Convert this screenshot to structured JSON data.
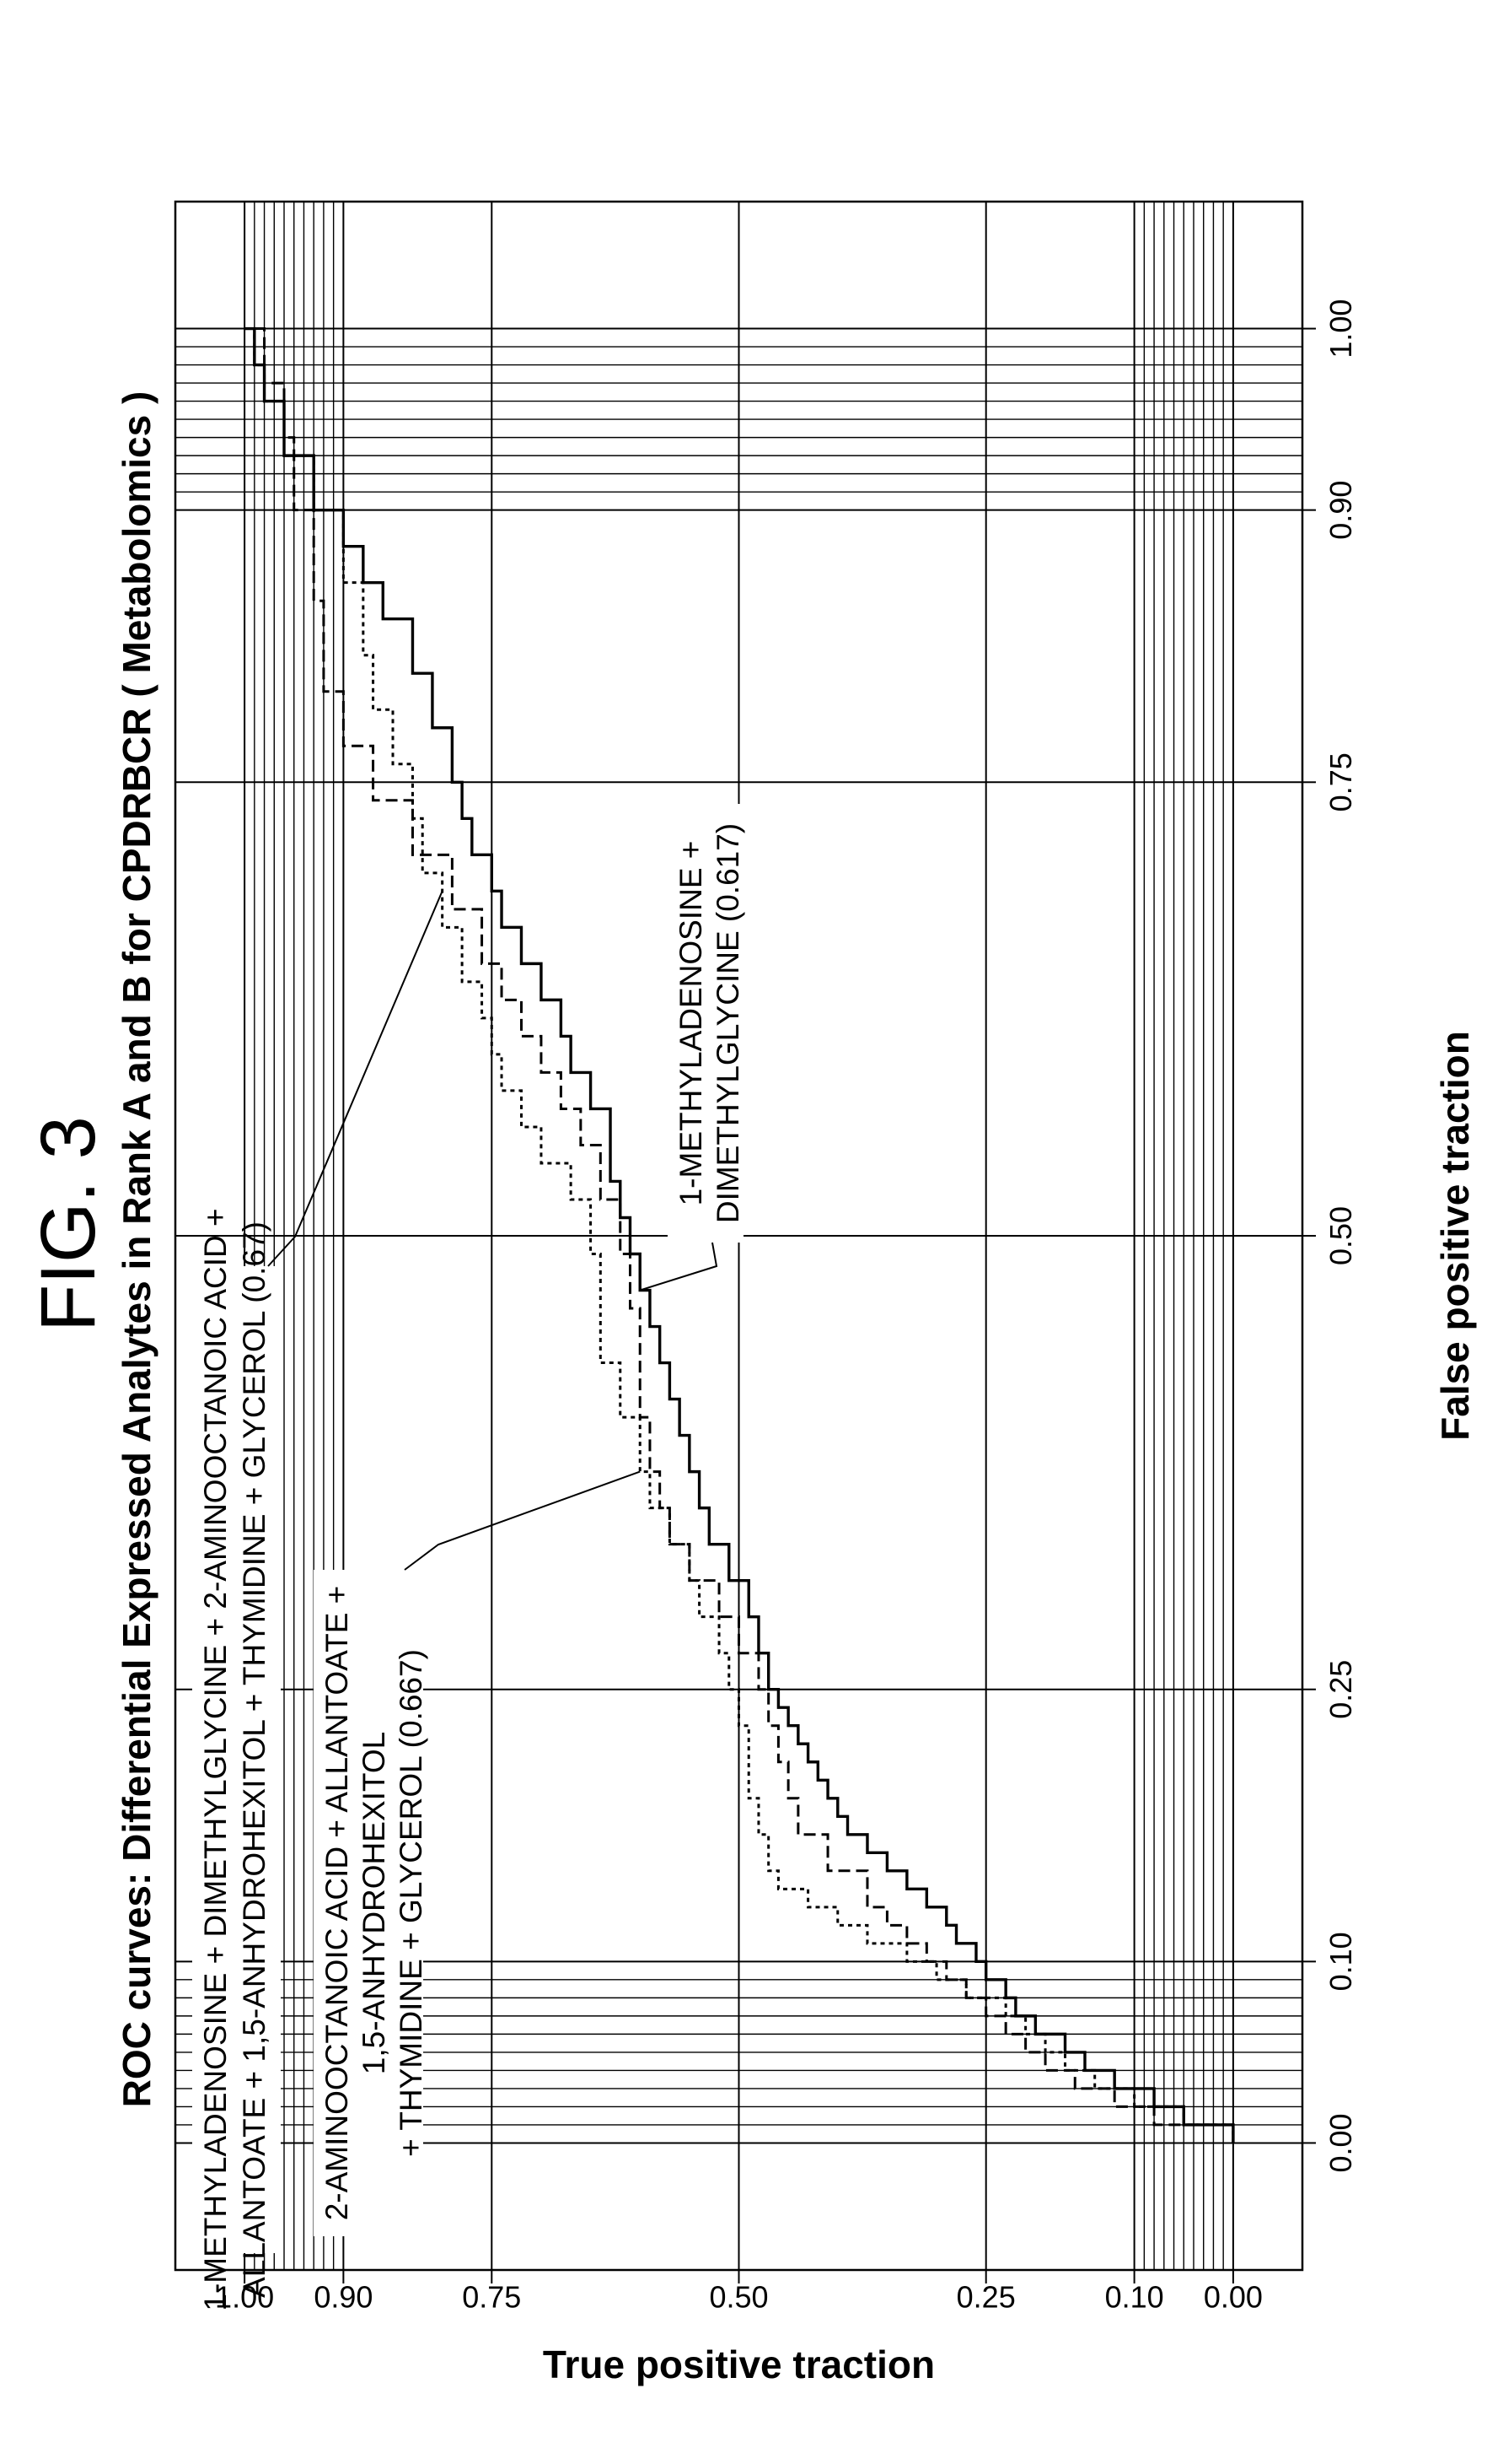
{
  "figure_label": "FIG. 3",
  "chart_data": {
    "type": "line",
    "title": "ROC curves: Differential Expressed Analytes in Rank A and B for CPDRBCR ( Metabolomics )",
    "xlabel": "False positive traction",
    "ylabel": "True positive traction",
    "xlim": [
      -0.07,
      1.07
    ],
    "ylim": [
      -0.07,
      1.07
    ],
    "x_ticks": [
      "0.00",
      "0.10",
      "0.25",
      "0.50",
      "0.75",
      "0.90",
      "1.00"
    ],
    "y_ticks": [
      "0.00",
      "0.10",
      "0.25",
      "0.50",
      "0.75",
      "0.90",
      "1.00"
    ],
    "x_tick_values": [
      0.0,
      0.1,
      0.25,
      0.5,
      0.75,
      0.9,
      1.0
    ],
    "y_tick_values": [
      0.0,
      0.1,
      0.25,
      0.5,
      0.75,
      0.9,
      1.0
    ],
    "grid": true,
    "fine_grid_bands": [
      [
        0.0,
        0.1
      ],
      [
        0.9,
        1.0
      ]
    ],
    "series": [
      {
        "name": "1-METHYLADENOSINE + DIMETHYLGLYCINE (0.617)",
        "style": "solid",
        "x": [
          0.0,
          0.01,
          0.01,
          0.02,
          0.03,
          0.04,
          0.05,
          0.06,
          0.07,
          0.08,
          0.09,
          0.1,
          0.11,
          0.12,
          0.13,
          0.14,
          0.15,
          0.16,
          0.17,
          0.18,
          0.19,
          0.2,
          0.21,
          0.22,
          0.23,
          0.24,
          0.25,
          0.27,
          0.29,
          0.31,
          0.33,
          0.35,
          0.37,
          0.39,
          0.41,
          0.43,
          0.45,
          0.47,
          0.49,
          0.51,
          0.53,
          0.55,
          0.57,
          0.59,
          0.61,
          0.63,
          0.65,
          0.67,
          0.69,
          0.71,
          0.73,
          0.75,
          0.78,
          0.81,
          0.84,
          0.86,
          0.88,
          0.9,
          0.93,
          0.96,
          0.98,
          1.0
        ],
        "y": [
          0.0,
          0.0,
          0.05,
          0.08,
          0.12,
          0.15,
          0.17,
          0.2,
          0.22,
          0.23,
          0.25,
          0.26,
          0.28,
          0.29,
          0.31,
          0.33,
          0.35,
          0.37,
          0.39,
          0.4,
          0.41,
          0.42,
          0.43,
          0.44,
          0.45,
          0.46,
          0.47,
          0.48,
          0.49,
          0.51,
          0.53,
          0.54,
          0.55,
          0.56,
          0.57,
          0.58,
          0.59,
          0.6,
          0.61,
          0.62,
          0.63,
          0.63,
          0.65,
          0.67,
          0.68,
          0.7,
          0.72,
          0.74,
          0.75,
          0.77,
          0.78,
          0.79,
          0.81,
          0.83,
          0.86,
          0.88,
          0.9,
          0.93,
          0.96,
          0.98,
          0.99,
          1.0
        ]
      },
      {
        "name": "2-AMINOOCTANOIC ACID + ALLANTOATE + 1,5-ANHYDROHEXITOL + THYMIDINE + GLYCEROL (0.667)",
        "style": "dashed",
        "x": [
          0.0,
          0.01,
          0.01,
          0.02,
          0.03,
          0.04,
          0.05,
          0.06,
          0.07,
          0.08,
          0.09,
          0.1,
          0.11,
          0.12,
          0.13,
          0.15,
          0.17,
          0.19,
          0.21,
          0.23,
          0.25,
          0.27,
          0.29,
          0.31,
          0.33,
          0.35,
          0.37,
          0.4,
          0.43,
          0.46,
          0.49,
          0.52,
          0.55,
          0.57,
          0.59,
          0.61,
          0.63,
          0.65,
          0.68,
          0.71,
          0.74,
          0.77,
          0.8,
          0.85,
          0.9,
          0.94,
          0.97,
          1.0
        ],
        "y": [
          0.0,
          0.0,
          0.08,
          0.12,
          0.16,
          0.19,
          0.21,
          0.23,
          0.25,
          0.27,
          0.29,
          0.31,
          0.33,
          0.35,
          0.37,
          0.41,
          0.44,
          0.45,
          0.46,
          0.47,
          0.48,
          0.5,
          0.52,
          0.55,
          0.57,
          0.58,
          0.59,
          0.6,
          0.6,
          0.61,
          0.62,
          0.64,
          0.66,
          0.68,
          0.7,
          0.72,
          0.74,
          0.76,
          0.79,
          0.83,
          0.87,
          0.9,
          0.92,
          0.93,
          0.95,
          0.96,
          0.98,
          1.0
        ]
      },
      {
        "name": "1-METHYLADENOSINE + DIMETHYLGLYCINE + 2-AMINOOCTANOIC ACID + ALLANTOATE + 1,5-ANHYDROHEXITOL + THYMIDINE + GLYCEROL (0.67)",
        "style": "dotted",
        "x": [
          0.0,
          0.01,
          0.01,
          0.02,
          0.03,
          0.04,
          0.05,
          0.06,
          0.07,
          0.08,
          0.09,
          0.1,
          0.11,
          0.12,
          0.13,
          0.14,
          0.15,
          0.17,
          0.19,
          0.21,
          0.23,
          0.25,
          0.27,
          0.29,
          0.31,
          0.33,
          0.35,
          0.37,
          0.4,
          0.43,
          0.46,
          0.49,
          0.52,
          0.54,
          0.56,
          0.58,
          0.6,
          0.62,
          0.64,
          0.67,
          0.7,
          0.73,
          0.76,
          0.79,
          0.82,
          0.86,
          0.9,
          0.93,
          0.96,
          0.98,
          1.0
        ],
        "y": [
          0.0,
          0.0,
          0.05,
          0.1,
          0.14,
          0.17,
          0.19,
          0.21,
          0.23,
          0.27,
          0.3,
          0.33,
          0.37,
          0.4,
          0.43,
          0.46,
          0.47,
          0.48,
          0.49,
          0.49,
          0.5,
          0.51,
          0.52,
          0.54,
          0.55,
          0.57,
          0.59,
          0.6,
          0.62,
          0.64,
          0.64,
          0.65,
          0.67,
          0.7,
          0.72,
          0.74,
          0.75,
          0.76,
          0.78,
          0.8,
          0.82,
          0.83,
          0.85,
          0.87,
          0.88,
          0.9,
          0.93,
          0.96,
          0.98,
          0.99,
          1.0
        ]
      }
    ],
    "annotations": [
      {
        "target": "dotted",
        "lines": [
          "1-METHYLADENOSINE + DIMETHYLGLYCINE + 2-AMINOOCTANOIC ACID  +",
          "ALLANTOATE + 1,5-ANHYDROHEXITOL + THYMIDINE + GLYCEROL (0.67)"
        ]
      },
      {
        "target": "dashed",
        "lines": [
          "2-AMINOOCTANOIC ACID + ALLANTOATE +",
          "1,5-ANHYDROHEXITOL",
          "+ THYMIDINE + GLYCEROL (0.667)"
        ]
      },
      {
        "target": "solid",
        "lines": [
          "1-METHYLADENOSINE +",
          "DIMETHYLGLYCINE (0.617)"
        ]
      }
    ]
  }
}
